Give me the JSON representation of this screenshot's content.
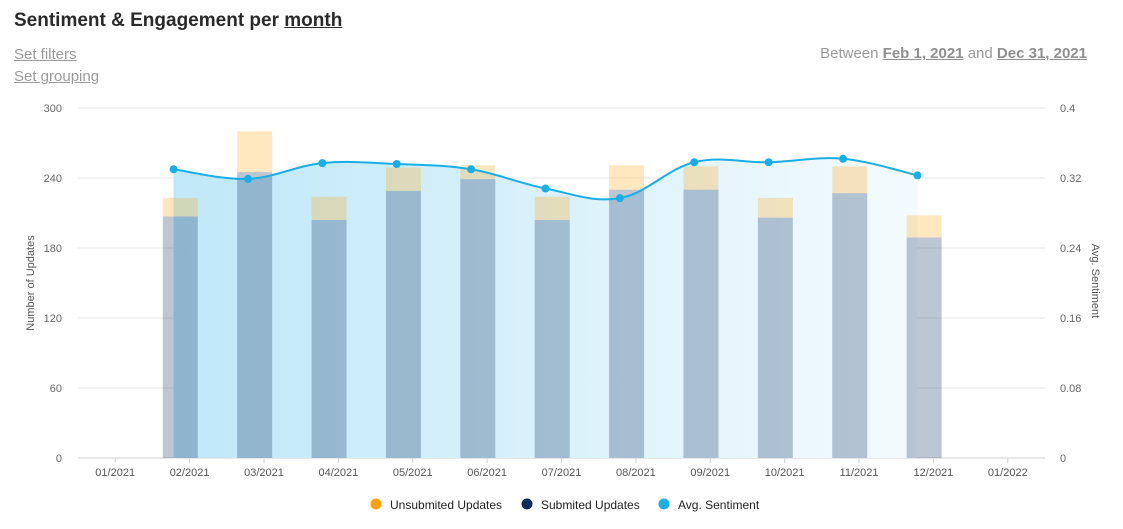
{
  "header": {
    "title_prefix": "Sentiment & Engagement per",
    "title_group": "month",
    "set_filters": "Set filters",
    "set_grouping": "Set grouping",
    "between_label": "Between",
    "start_date": "Feb 1, 2021",
    "and_label": "and",
    "end_date": "Dec 31, 2021"
  },
  "chart_data": {
    "type": "bar",
    "title": "Sentiment & Engagement per month",
    "categories": [
      "01/2021",
      "02/2021",
      "03/2021",
      "04/2021",
      "05/2021",
      "06/2021",
      "07/2021",
      "08/2021",
      "09/2021",
      "10/2021",
      "11/2021",
      "12/2021",
      "01/2022"
    ],
    "ylabel": "Number of Updates",
    "y2label": "Avg. Sentiment",
    "ylim": [
      0,
      300
    ],
    "yticks": [
      "0",
      "60",
      "120",
      "180",
      "240",
      "300"
    ],
    "y2lim": [
      0,
      0.4
    ],
    "y2ticks": [
      "0",
      "0.08",
      "0.16",
      "0.24",
      "0.32",
      "0.4"
    ],
    "series": [
      {
        "name": "Submited Updates",
        "kind": "bar",
        "color": "#0b2d5b",
        "values": [
          null,
          207,
          245,
          204,
          229,
          239,
          204,
          230,
          230,
          206,
          227,
          189,
          null
        ]
      },
      {
        "name": "Unsubmited Updates",
        "kind": "bar",
        "color": "#ffa000",
        "values": [
          null,
          16,
          35,
          20,
          20,
          12,
          20,
          21,
          20,
          17,
          23,
          19,
          null
        ]
      },
      {
        "name": "Avg. Sentiment",
        "kind": "area-line",
        "axis": "right",
        "color": "#19aee6",
        "values": [
          null,
          0.33,
          0.319,
          0.337,
          0.336,
          0.33,
          0.308,
          0.297,
          0.338,
          0.338,
          0.342,
          0.323,
          null
        ]
      }
    ],
    "legend": [
      "Unsubmited Updates",
      "Submited Updates",
      "Avg. Sentiment"
    ],
    "legend_position": "bottom",
    "grid": true
  }
}
